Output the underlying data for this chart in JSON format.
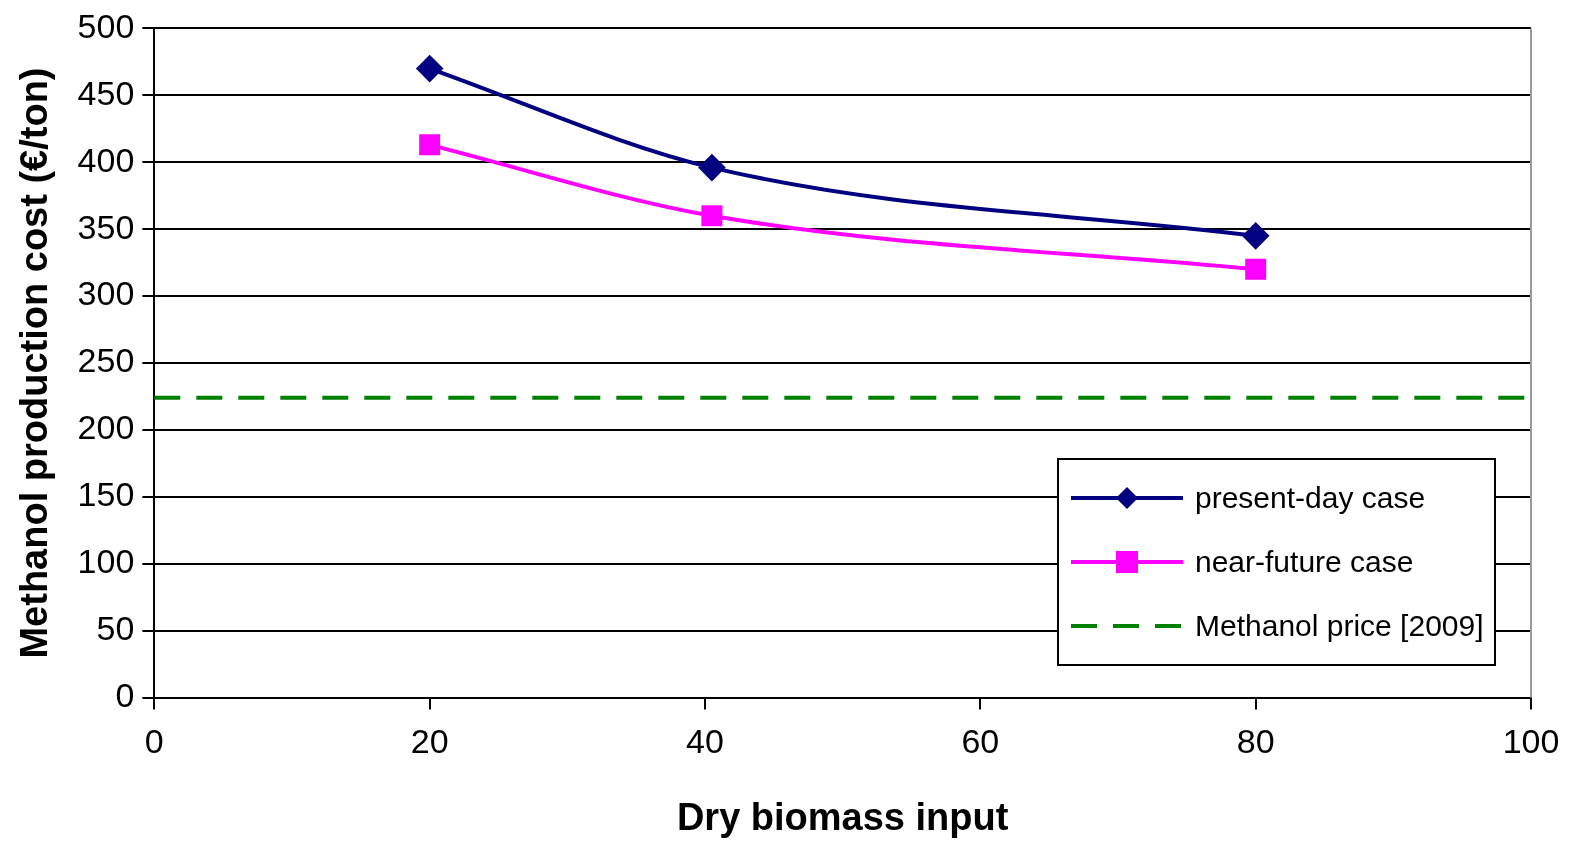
{
  "chart_data": {
    "type": "line",
    "xlabel": "Dry biomass input",
    "ylabel": "Methanol production cost (€/ton)",
    "xlim": [
      0,
      100
    ],
    "xticks": [
      0,
      20,
      40,
      60,
      80,
      100
    ],
    "ylim": [
      0,
      500
    ],
    "yticks": [
      0,
      50,
      100,
      150,
      200,
      250,
      300,
      350,
      400,
      450,
      500
    ],
    "series": [
      {
        "name": "present-day case",
        "color": "#000080",
        "x": [
          20,
          40.5,
          80
        ],
        "values": [
          470,
          396,
          345
        ],
        "marker": "diamond"
      },
      {
        "name": "near-future case",
        "color": "#ff00ff",
        "x": [
          20,
          40.5,
          80
        ],
        "values": [
          413,
          360,
          320
        ],
        "marker": "square"
      }
    ],
    "ref_lines": [
      {
        "axis": "y",
        "value": 224,
        "label": "Methanol price [2009]",
        "color": "#008000",
        "line_style": "dashed"
      }
    ],
    "grid": "y",
    "legend": "bottom right"
  }
}
